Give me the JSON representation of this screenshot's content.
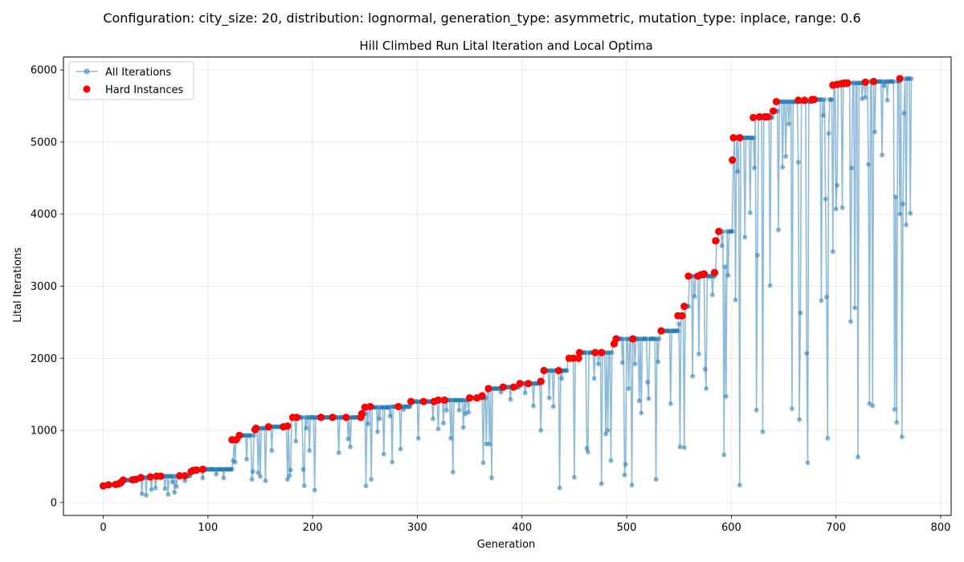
{
  "figure": {
    "suptitle": "Configuration: city_size: 20, distribution: lognormal, generation_type: asymmetric, mutation_type: inplace, range: 0.6"
  },
  "chart_data": {
    "type": "line",
    "title": "Hill Climbed Run Lital Iteration and Local Optima",
    "xlabel": "Generation",
    "ylabel": "Lital Iterations",
    "xlim": [
      -38,
      810
    ],
    "ylim": [
      -180,
      6180
    ],
    "xticks": [
      0,
      100,
      200,
      300,
      400,
      500,
      600,
      700,
      800
    ],
    "yticks": [
      0,
      1000,
      2000,
      3000,
      4000,
      5000,
      6000
    ],
    "grid": true,
    "legend": {
      "placement": "top-left",
      "entries": [
        {
          "label": "All Iterations",
          "color": "#1f77b4",
          "marker": "line+circle"
        },
        {
          "label": "Hard Instances",
          "color": "#ff0000",
          "marker": "circle"
        }
      ]
    },
    "series": [
      {
        "name": "All Iterations",
        "color": "#1f77b4",
        "note": "best-so-far plateau with occasional downward dips",
        "plateaus": [
          [
            0,
            230
          ],
          [
            6,
            245
          ],
          [
            15,
            260
          ],
          [
            19,
            310
          ],
          [
            28,
            320
          ],
          [
            36,
            345
          ],
          [
            45,
            355
          ],
          [
            53,
            365
          ],
          [
            72,
            370
          ],
          [
            84,
            430
          ],
          [
            88,
            450
          ],
          [
            95,
            460
          ],
          [
            124,
            870
          ],
          [
            130,
            930
          ],
          [
            145,
            1030
          ],
          [
            158,
            1050
          ],
          [
            175,
            1060
          ],
          [
            180,
            1180
          ],
          [
            208,
            1180
          ],
          [
            248,
            1230
          ],
          [
            251,
            1320
          ],
          [
            275,
            1330
          ],
          [
            294,
            1400
          ],
          [
            320,
            1420
          ],
          [
            350,
            1450
          ],
          [
            366,
            1580
          ],
          [
            381,
            1600
          ],
          [
            398,
            1650
          ],
          [
            419,
            1680
          ],
          [
            421,
            1830
          ],
          [
            444,
            2000
          ],
          [
            454,
            2080
          ],
          [
            487,
            2200
          ],
          [
            490,
            2270
          ],
          [
            532,
            2380
          ],
          [
            551,
            2590
          ],
          [
            556,
            2720
          ],
          [
            560,
            3140
          ],
          [
            585,
            3190
          ],
          [
            586,
            3630
          ],
          [
            588,
            3760
          ],
          [
            602,
            4750
          ],
          [
            603,
            5060
          ],
          [
            622,
            5340
          ],
          [
            640,
            5430
          ],
          [
            645,
            5560
          ],
          [
            678,
            5590
          ],
          [
            697,
            5790
          ],
          [
            712,
            5820
          ],
          [
            730,
            5840
          ],
          [
            761,
            5880
          ],
          [
            772,
            5880
          ]
        ],
        "dips": [
          [
            37,
            120
          ],
          [
            41,
            100
          ],
          [
            46,
            180
          ],
          [
            50,
            200
          ],
          [
            59,
            190
          ],
          [
            62,
            110
          ],
          [
            66,
            280
          ],
          [
            68,
            140
          ],
          [
            70,
            220
          ],
          [
            78,
            300
          ],
          [
            95,
            340
          ],
          [
            108,
            390
          ],
          [
            115,
            340
          ],
          [
            124,
            580
          ],
          [
            126,
            560
          ],
          [
            137,
            600
          ],
          [
            142,
            320
          ],
          [
            143,
            430
          ],
          [
            148,
            410
          ],
          [
            150,
            360
          ],
          [
            155,
            300
          ],
          [
            161,
            720
          ],
          [
            176,
            320
          ],
          [
            178,
            370
          ],
          [
            179,
            450
          ],
          [
            184,
            850
          ],
          [
            191,
            460
          ],
          [
            192,
            230
          ],
          [
            194,
            1030
          ],
          [
            197,
            720
          ],
          [
            202,
            170
          ],
          [
            225,
            690
          ],
          [
            234,
            880
          ],
          [
            236,
            770
          ],
          [
            251,
            230
          ],
          [
            253,
            1090
          ],
          [
            256,
            320
          ],
          [
            262,
            980
          ],
          [
            264,
            1160
          ],
          [
            268,
            670
          ],
          [
            274,
            1200
          ],
          [
            276,
            560
          ],
          [
            284,
            740
          ],
          [
            287,
            1290
          ],
          [
            301,
            890
          ],
          [
            315,
            1160
          ],
          [
            320,
            1020
          ],
          [
            325,
            1100
          ],
          [
            328,
            1280
          ],
          [
            332,
            890
          ],
          [
            334,
            420
          ],
          [
            340,
            1280
          ],
          [
            344,
            1040
          ],
          [
            346,
            1230
          ],
          [
            349,
            1250
          ],
          [
            363,
            550
          ],
          [
            366,
            810
          ],
          [
            369,
            810
          ],
          [
            371,
            340
          ],
          [
            380,
            1530
          ],
          [
            389,
            1430
          ],
          [
            403,
            1520
          ],
          [
            411,
            1340
          ],
          [
            418,
            1000
          ],
          [
            426,
            1450
          ],
          [
            430,
            1330
          ],
          [
            436,
            200
          ],
          [
            438,
            1720
          ],
          [
            450,
            350
          ],
          [
            462,
            750
          ],
          [
            463,
            700
          ],
          [
            469,
            1720
          ],
          [
            473,
            1920
          ],
          [
            476,
            260
          ],
          [
            480,
            950
          ],
          [
            482,
            1000
          ],
          [
            485,
            580
          ],
          [
            496,
            1940
          ],
          [
            498,
            380
          ],
          [
            499,
            530
          ],
          [
            502,
            1580
          ],
          [
            505,
            240
          ],
          [
            508,
            1920
          ],
          [
            512,
            1410
          ],
          [
            514,
            1240
          ],
          [
            520,
            1670
          ],
          [
            521,
            1440
          ],
          [
            528,
            320
          ],
          [
            530,
            1950
          ],
          [
            550,
            2480
          ],
          [
            551,
            770
          ],
          [
            555,
            760
          ],
          [
            542,
            1370
          ],
          [
            563,
            1750
          ],
          [
            565,
            2860
          ],
          [
            569,
            2060
          ],
          [
            575,
            1850
          ],
          [
            576,
            1580
          ],
          [
            582,
            2880
          ],
          [
            591,
            3560
          ],
          [
            593,
            660
          ],
          [
            594,
            3270
          ],
          [
            595,
            1470
          ],
          [
            597,
            3150
          ],
          [
            604,
            2810
          ],
          [
            606,
            4590
          ],
          [
            608,
            240
          ],
          [
            613,
            3680
          ],
          [
            618,
            4020
          ],
          [
            622,
            4640
          ],
          [
            624,
            1280
          ],
          [
            625,
            3430
          ],
          [
            630,
            980
          ],
          [
            637,
            3010
          ],
          [
            645,
            3780
          ],
          [
            649,
            4650
          ],
          [
            652,
            4800
          ],
          [
            655,
            5250
          ],
          [
            658,
            1300
          ],
          [
            664,
            4720
          ],
          [
            665,
            1150
          ],
          [
            666,
            2630
          ],
          [
            672,
            2070
          ],
          [
            673,
            550
          ],
          [
            686,
            2800
          ],
          [
            688,
            5370
          ],
          [
            690,
            4210
          ],
          [
            691,
            2850
          ],
          [
            692,
            890
          ],
          [
            693,
            5120
          ],
          [
            697,
            3480
          ],
          [
            700,
            4070
          ],
          [
            701,
            4400
          ],
          [
            706,
            4090
          ],
          [
            714,
            2510
          ],
          [
            715,
            4640
          ],
          [
            718,
            2700
          ],
          [
            721,
            630
          ],
          [
            725,
            5600
          ],
          [
            728,
            5620
          ],
          [
            731,
            4690
          ],
          [
            732,
            1370
          ],
          [
            735,
            1340
          ],
          [
            737,
            5140
          ],
          [
            744,
            4820
          ],
          [
            746,
            5780
          ],
          [
            749,
            5580
          ],
          [
            756,
            1290
          ],
          [
            757,
            4240
          ],
          [
            758,
            1110
          ],
          [
            761,
            4000
          ],
          [
            763,
            910
          ],
          [
            764,
            4140
          ],
          [
            765,
            5400
          ],
          [
            767,
            3850
          ],
          [
            771,
            4010
          ]
        ]
      },
      {
        "name": "Hard Instances",
        "color": "#ff0000",
        "points": [
          [
            0,
            230
          ],
          [
            5,
            245
          ],
          [
            12,
            250
          ],
          [
            15,
            260
          ],
          [
            17,
            280
          ],
          [
            19,
            310
          ],
          [
            28,
            315
          ],
          [
            31,
            320
          ],
          [
            36,
            345
          ],
          [
            45,
            355
          ],
          [
            51,
            365
          ],
          [
            55,
            365
          ],
          [
            73,
            370
          ],
          [
            78,
            370
          ],
          [
            84,
            430
          ],
          [
            86,
            445
          ],
          [
            89,
            450
          ],
          [
            95,
            460
          ],
          [
            123,
            870
          ],
          [
            127,
            870
          ],
          [
            130,
            930
          ],
          [
            145,
            1010
          ],
          [
            146,
            1030
          ],
          [
            158,
            1050
          ],
          [
            172,
            1050
          ],
          [
            176,
            1060
          ],
          [
            181,
            1180
          ],
          [
            185,
            1180
          ],
          [
            208,
            1180
          ],
          [
            219,
            1180
          ],
          [
            232,
            1180
          ],
          [
            246,
            1180
          ],
          [
            247,
            1230
          ],
          [
            250,
            1320
          ],
          [
            255,
            1330
          ],
          [
            282,
            1330
          ],
          [
            294,
            1400
          ],
          [
            306,
            1400
          ],
          [
            316,
            1400
          ],
          [
            320,
            1420
          ],
          [
            326,
            1420
          ],
          [
            350,
            1450
          ],
          [
            357,
            1450
          ],
          [
            362,
            1480
          ],
          [
            368,
            1580
          ],
          [
            382,
            1600
          ],
          [
            392,
            1600
          ],
          [
            398,
            1650
          ],
          [
            406,
            1650
          ],
          [
            418,
            1680
          ],
          [
            421,
            1830
          ],
          [
            435,
            1830
          ],
          [
            445,
            2000
          ],
          [
            449,
            2000
          ],
          [
            454,
            2000
          ],
          [
            455,
            2080
          ],
          [
            470,
            2080
          ],
          [
            476,
            2080
          ],
          [
            488,
            2200
          ],
          [
            490,
            2270
          ],
          [
            506,
            2270
          ],
          [
            533,
            2380
          ],
          [
            549,
            2590
          ],
          [
            553,
            2590
          ],
          [
            555,
            2720
          ],
          [
            559,
            3140
          ],
          [
            568,
            3140
          ],
          [
            571,
            3160
          ],
          [
            574,
            3170
          ],
          [
            584,
            3190
          ],
          [
            585,
            3630
          ],
          [
            588,
            3760
          ],
          [
            601,
            4750
          ],
          [
            602,
            5060
          ],
          [
            608,
            5060
          ],
          [
            621,
            5340
          ],
          [
            627,
            5350
          ],
          [
            632,
            5350
          ],
          [
            635,
            5350
          ],
          [
            640,
            5430
          ],
          [
            643,
            5560
          ],
          [
            664,
            5580
          ],
          [
            670,
            5580
          ],
          [
            677,
            5590
          ],
          [
            679,
            5590
          ],
          [
            697,
            5790
          ],
          [
            701,
            5800
          ],
          [
            705,
            5810
          ],
          [
            708,
            5820
          ],
          [
            711,
            5820
          ],
          [
            728,
            5830
          ],
          [
            736,
            5840
          ],
          [
            761,
            5880
          ]
        ]
      }
    ]
  }
}
